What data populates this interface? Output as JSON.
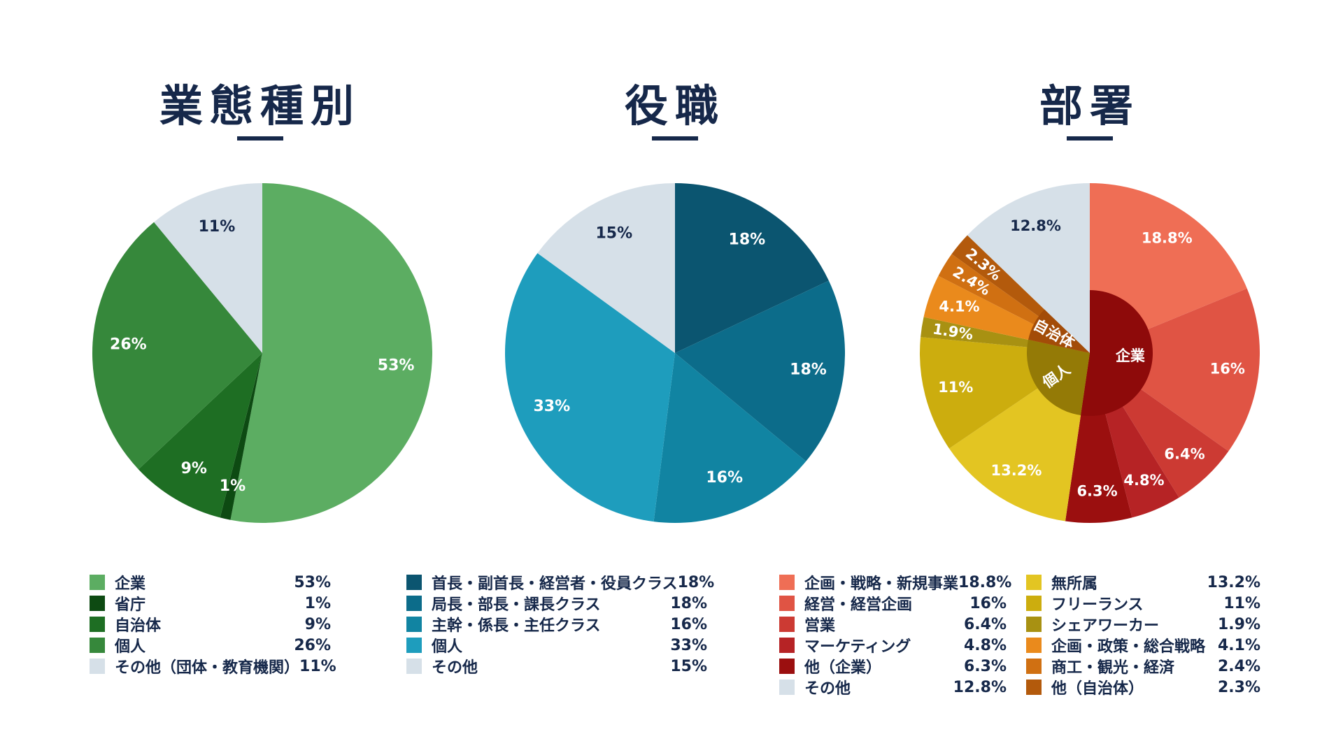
{
  "chart_data": [
    {
      "type": "pie",
      "title": "業態種別",
      "slices": [
        {
          "label": "企業",
          "value": 53,
          "display": "53%",
          "color": "#5cad62"
        },
        {
          "label": "省庁",
          "value": 1,
          "display": "1%",
          "color": "#0d4a12"
        },
        {
          "label": "自治体",
          "value": 9,
          "display": "9%",
          "color": "#1e6e23"
        },
        {
          "label": "個人",
          "value": 26,
          "display": "26%",
          "color": "#36883b"
        },
        {
          "label": "その他（団体・教育機関）",
          "value": 11,
          "display": "11%",
          "color": "#d6e0e8"
        }
      ]
    },
    {
      "type": "pie",
      "title": "役職",
      "slices": [
        {
          "label": "首長・副首長・経営者・役員クラス",
          "value": 18,
          "display": "18%",
          "color": "#0b5570"
        },
        {
          "label": "局長・部長・課長クラス",
          "value": 18,
          "display": "18%",
          "color": "#0c6c8a"
        },
        {
          "label": "主幹・係長・主任クラス",
          "value": 16,
          "display": "16%",
          "color": "#1184a2"
        },
        {
          "label": "個人",
          "value": 33,
          "display": "33%",
          "color": "#1e9dbd"
        },
        {
          "label": "その他",
          "value": 15,
          "display": "15%",
          "color": "#d6e0e8"
        }
      ]
    },
    {
      "type": "pie",
      "title": "部署",
      "slices": [
        {
          "label": "企画・戦略・新規事業",
          "value": 18.8,
          "display": "18.8%",
          "color": "#ef6e55",
          "group": "企業"
        },
        {
          "label": "経営・経営企画",
          "value": 16,
          "display": "16%",
          "color": "#e05444",
          "group": "企業"
        },
        {
          "label": "営業",
          "value": 6.4,
          "display": "6.4%",
          "color": "#cc3a33",
          "group": "企業"
        },
        {
          "label": "マーケティング",
          "value": 4.8,
          "display": "4.8%",
          "color": "#b62325",
          "group": "企業"
        },
        {
          "label": "他（企業）",
          "value": 6.3,
          "display": "6.3%",
          "color": "#9b0f0f",
          "group": "企業"
        },
        {
          "label": "無所属",
          "value": 13.2,
          "display": "13.2%",
          "color": "#e3c522",
          "group": "個人"
        },
        {
          "label": "フリーランス",
          "value": 11,
          "display": "11%",
          "color": "#ccad0e",
          "group": "個人"
        },
        {
          "label": "シェアワーカー",
          "value": 1.9,
          "display": "1.9%",
          "color": "#a89112",
          "group": "個人"
        },
        {
          "label": "企画・政策・総合戦略",
          "value": 4.1,
          "display": "4.1%",
          "color": "#ea8a1c",
          "group": "自治体"
        },
        {
          "label": "商工・観光・経済",
          "value": 2.4,
          "display": "2.4%",
          "color": "#d07012",
          "group": "自治体"
        },
        {
          "label": "他（自治体）",
          "value": 2.3,
          "display": "2.3%",
          "color": "#b35a0c",
          "group": "自治体"
        },
        {
          "label": "その他",
          "value": 12.8,
          "display": "12.8%",
          "color": "#d6e0e8"
        }
      ],
      "inner_groups": [
        {
          "label": "企業",
          "color": "#8e0a0a"
        },
        {
          "label": "個人",
          "color": "#947a06"
        },
        {
          "label": "自治体",
          "color": "#a34c08"
        }
      ]
    }
  ],
  "legends": {
    "0": [
      0,
      1,
      2,
      3,
      4
    ],
    "1": [
      0,
      1,
      2,
      3,
      4
    ],
    "2a": [
      0,
      1,
      2,
      3,
      4,
      11
    ],
    "2b": [
      5,
      6,
      7,
      8,
      9,
      10
    ]
  }
}
